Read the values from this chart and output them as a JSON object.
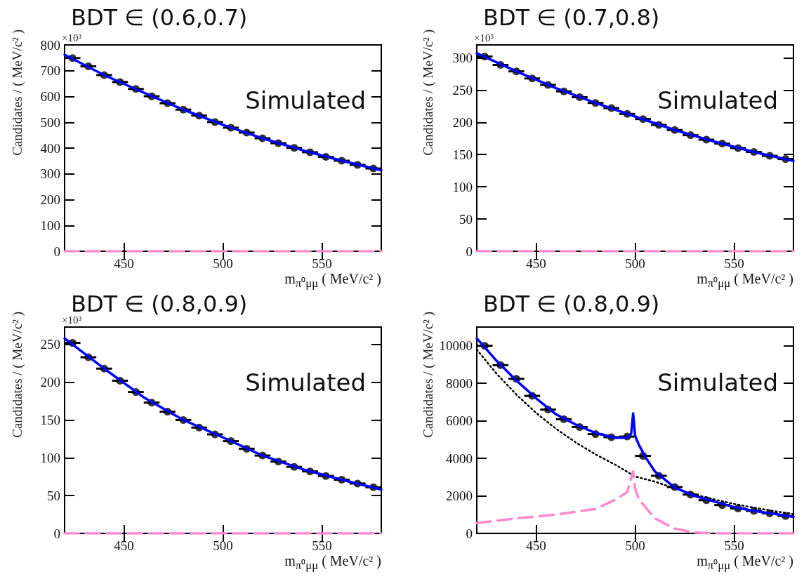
{
  "chart_data": [
    {
      "type": "scatter",
      "title": "BDT ∈ (0.6,0.7)",
      "xlabel": "m$_{π⁰μμ}$ ( MeV/c² )",
      "ylabel": "Candidates / ( MeV/c² )",
      "annotations": [
        "Simulated",
        "×10³"
      ],
      "xlim": [
        420,
        580
      ],
      "xticks": [
        450,
        500,
        550
      ],
      "ylim": [
        0,
        800
      ],
      "yticks": [
        0,
        100,
        200,
        300,
        400,
        500,
        600,
        700,
        800
      ],
      "series": [
        {
          "color": "#000000",
          "marker": "circle",
          "x": [
            424,
            432,
            440,
            448,
            456,
            464,
            472,
            480,
            488,
            496,
            504,
            512,
            520,
            528,
            536,
            544,
            552,
            560,
            568,
            576
          ],
          "values": [
            749,
            717,
            683,
            656,
            629,
            601,
            574,
            549,
            526,
            501,
            479,
            460,
            438,
            419,
            401,
            384,
            366,
            351,
            335,
            321
          ],
          "xerrors": [
            4,
            4,
            4,
            4,
            4,
            4,
            4,
            4,
            4,
            4,
            4,
            4,
            4,
            4,
            4,
            4,
            4,
            4,
            4,
            4
          ]
        },
        {
          "type": "line",
          "color": "#0000ff",
          "line_style": "solid",
          "x": [
            420,
            440,
            460,
            480,
            500,
            520,
            540,
            560,
            580
          ],
          "values": [
            762,
            683,
            615,
            549,
            490,
            438,
            392,
            351,
            314
          ]
        },
        {
          "type": "line",
          "color": "#ff88cc",
          "line_style": "dashed",
          "x": [
            420,
            580
          ],
          "values": [
            0,
            0
          ]
        }
      ]
    },
    {
      "type": "scatter",
      "title": "BDT ∈ (0.7,0.8)",
      "xlabel": "m$_{π⁰μμ}$ ( MeV/c² )",
      "ylabel": "Candidates / ( MeV/c² )",
      "annotations": [
        "Simulated",
        "×10³"
      ],
      "xlim": [
        420,
        580
      ],
      "xticks": [
        450,
        500,
        550
      ],
      "ylim": [
        0,
        320
      ],
      "yticks": [
        0,
        50,
        100,
        150,
        200,
        250,
        300
      ],
      "series": [
        {
          "color": "#000000",
          "marker": "circle",
          "x": [
            424,
            432,
            440,
            448,
            456,
            464,
            472,
            480,
            488,
            496,
            504,
            512,
            520,
            528,
            536,
            544,
            552,
            560,
            568,
            576
          ],
          "values": [
            302,
            289,
            279,
            268,
            258,
            248,
            239,
            230,
            222,
            213,
            205,
            196,
            188,
            180,
            173,
            167,
            160,
            154,
            148,
            143
          ],
          "xerrors": [
            4,
            4,
            4,
            4,
            4,
            4,
            4,
            4,
            4,
            4,
            4,
            4,
            4,
            4,
            4,
            4,
            4,
            4,
            4,
            4
          ]
        },
        {
          "type": "line",
          "color": "#0000ff",
          "line_style": "solid",
          "x": [
            420,
            440,
            460,
            480,
            500,
            520,
            540,
            560,
            580
          ],
          "values": [
            307,
            279,
            253,
            230,
            209,
            188,
            170,
            154,
            140
          ]
        },
        {
          "type": "line",
          "color": "#ff88cc",
          "line_style": "dashed",
          "x": [
            420,
            580
          ],
          "values": [
            0,
            0
          ]
        }
      ]
    },
    {
      "type": "scatter",
      "title": "BDT ∈ (0.8,0.9)",
      "xlabel": "m$_{π⁰μμ}$ ( MeV/c² )",
      "ylabel": "Candidates / ( MeV/c² )",
      "annotations": [
        "Simulated",
        "×10³"
      ],
      "xlim": [
        420,
        580
      ],
      "xticks": [
        450,
        500,
        550
      ],
      "ylim": [
        0,
        273
      ],
      "yticks": [
        0,
        50,
        100,
        150,
        200,
        250
      ],
      "series": [
        {
          "color": "#000000",
          "marker": "circle",
          "x": [
            424,
            432,
            440,
            448,
            456,
            464,
            472,
            480,
            488,
            496,
            504,
            512,
            520,
            528,
            536,
            544,
            552,
            560,
            568,
            576
          ],
          "values": [
            252,
            233,
            218,
            202,
            187,
            173,
            161,
            150,
            140,
            131,
            122,
            112,
            103,
            95,
            88,
            82,
            76,
            71,
            66,
            61
          ],
          "xerrors": [
            4,
            4,
            4,
            4,
            4,
            4,
            4,
            4,
            4,
            4,
            4,
            4,
            4,
            4,
            4,
            4,
            4,
            4,
            4,
            4
          ]
        },
        {
          "type": "line",
          "color": "#0000ff",
          "line_style": "solid",
          "x": [
            420,
            440,
            460,
            480,
            500,
            520,
            540,
            560,
            580
          ],
          "values": [
            258,
            218,
            180,
            150,
            127,
            103,
            85,
            71,
            58
          ]
        },
        {
          "type": "line",
          "color": "#ff88cc",
          "line_style": "dashed",
          "x": [
            420,
            580
          ],
          "values": [
            0,
            0
          ]
        }
      ]
    },
    {
      "type": "scatter",
      "title": "BDT ∈ (0.8,0.9)",
      "xlabel": "m$_{π⁰μμ}$ ( MeV/c² )",
      "ylabel": "Candidates / ( MeV/c² )",
      "annotations": [
        "Simulated"
      ],
      "xlim": [
        420,
        580
      ],
      "xticks": [
        450,
        500,
        550
      ],
      "ylim": [
        0,
        11000
      ],
      "yticks": [
        0,
        2000,
        4000,
        6000,
        8000,
        10000
      ],
      "series": [
        {
          "type": "line",
          "color": "#000000",
          "line_style": "dotted",
          "x": [
            420,
            430,
            440,
            450,
            460,
            470,
            480,
            490,
            500,
            510,
            520,
            530,
            540,
            550,
            560,
            570,
            580
          ],
          "values": [
            9800,
            8510,
            7400,
            6420,
            5580,
            4850,
            4210,
            3660,
            3030,
            2760,
            2400,
            2080,
            1810,
            1570,
            1370,
            1190,
            1030
          ]
        },
        {
          "type": "line",
          "color": "#ff88cc",
          "line_style": "dashed",
          "x": [
            420,
            440,
            460,
            480,
            490,
            496,
            499,
            500,
            502,
            510,
            520,
            530,
            540,
            580
          ],
          "values": [
            550,
            800,
            1000,
            1300,
            1800,
            2200,
            3300,
            2400,
            1800,
            800,
            250,
            50,
            0,
            0
          ]
        },
        {
          "color": "#000000",
          "marker": "circle",
          "x": [
            424,
            432,
            440,
            448,
            456,
            464,
            472,
            480,
            488,
            496,
            504,
            512,
            520,
            528,
            536,
            544,
            552,
            560,
            568,
            576
          ],
          "values": [
            10000,
            8970,
            8240,
            7330,
            6600,
            6090,
            5670,
            5290,
            5130,
            5160,
            4130,
            3070,
            2470,
            2070,
            1770,
            1510,
            1330,
            1200,
            1070,
            930
          ],
          "xerrors": [
            4,
            4,
            4,
            4,
            4,
            4,
            4,
            4,
            4,
            4,
            4,
            4,
            4,
            4,
            4,
            4,
            4,
            4,
            4,
            4
          ]
        },
        {
          "type": "line",
          "color": "#0000ff",
          "line_style": "solid",
          "x": [
            420,
            430,
            440,
            450,
            460,
            470,
            480,
            490,
            496,
            498,
            499,
            500,
            502,
            505,
            510,
            520,
            530,
            540,
            550,
            560,
            570,
            580
          ],
          "values": [
            10400,
            9200,
            8150,
            7200,
            6350,
            5800,
            5350,
            5100,
            5100,
            5300,
            6400,
            5200,
            4700,
            4100,
            3300,
            2450,
            2000,
            1700,
            1400,
            1200,
            1050,
            880
          ]
        }
      ]
    }
  ]
}
